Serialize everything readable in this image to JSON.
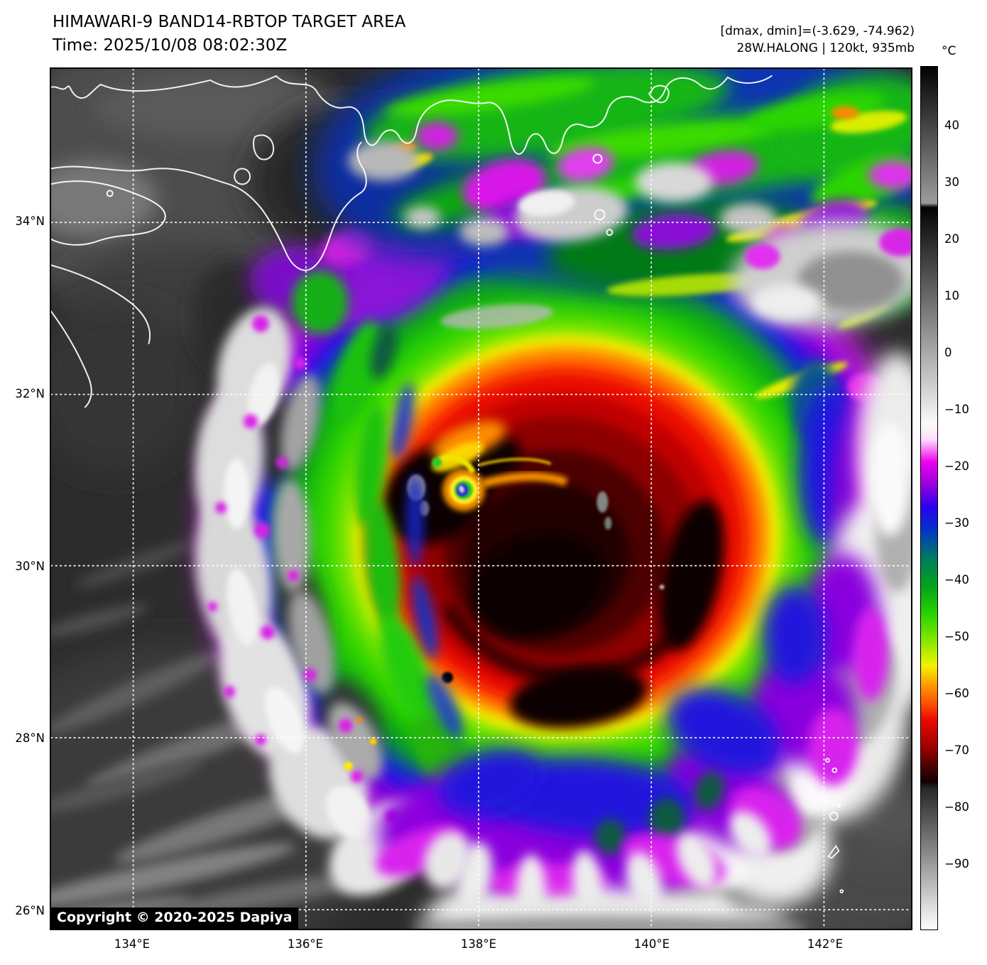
{
  "header": {
    "title": "HIMAWARI-9 BAND14-RBTOP TARGET AREA",
    "time_line": "Time: 2025/10/08 08:02:30Z",
    "stats_line": "[dmax, dmin]=(-3.629, -74.962)",
    "storm_line": "28W.HALONG | 120kt, 935mb"
  },
  "colorbar": {
    "unit_label": "°C",
    "tick_labels": [
      "40",
      "30",
      "20",
      "10",
      "0",
      "−10",
      "−20",
      "−30",
      "−40",
      "−50",
      "−60",
      "−70",
      "−80",
      "−90"
    ],
    "gradient_stops": [
      [
        0.0,
        "#020202"
      ],
      [
        0.158,
        "#9c9c9c"
      ],
      [
        0.163,
        "#030303"
      ],
      [
        0.414,
        "#fafafa"
      ],
      [
        0.432,
        "#ffddff"
      ],
      [
        0.458,
        "#ee00ee"
      ],
      [
        0.484,
        "#9900dd"
      ],
      [
        0.51,
        "#2b00ee"
      ],
      [
        0.536,
        "#0033cc"
      ],
      [
        0.569,
        "#007a5e"
      ],
      [
        0.602,
        "#00a41c"
      ],
      [
        0.635,
        "#2ad400"
      ],
      [
        0.668,
        "#8fe800"
      ],
      [
        0.694,
        "#f2f200"
      ],
      [
        0.717,
        "#ff9900"
      ],
      [
        0.737,
        "#ff5500"
      ],
      [
        0.757,
        "#ec0800"
      ],
      [
        0.79,
        "#9a0000"
      ],
      [
        0.809,
        "#500000"
      ],
      [
        0.829,
        "#150000"
      ],
      [
        0.836,
        "#262626"
      ],
      [
        1.0,
        "#ffffff"
      ]
    ]
  },
  "map": {
    "x_tick_labels": [
      "134°E",
      "136°E",
      "138°E",
      "140°E",
      "142°E"
    ],
    "y_tick_labels": [
      "34°N",
      "32°N",
      "30°N",
      "28°N",
      "26°N"
    ],
    "copyright": "Copyright © 2020-2025 Dapiya"
  }
}
